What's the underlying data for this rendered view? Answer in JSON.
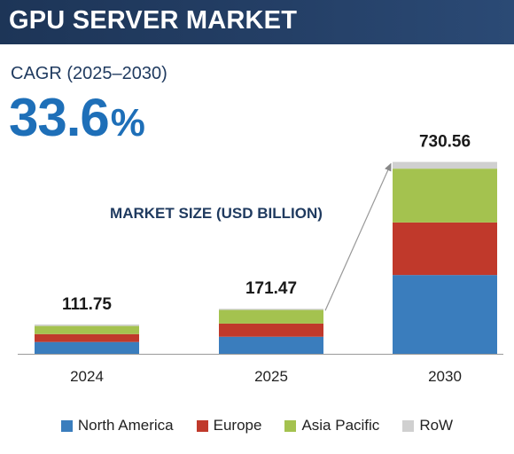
{
  "header": {
    "title": "GPU SERVER MARKET"
  },
  "cagr": {
    "label": "CAGR (2025–2030)",
    "value": "33.6",
    "unit": "%"
  },
  "colors": {
    "north_america": "#3a7dbd",
    "europe": "#c0392b",
    "asia_pacific": "#a4c24f",
    "row": "#d0d0d0",
    "header_bg": "#1d3557"
  },
  "chart_data": {
    "type": "bar",
    "stacked": true,
    "title": "MARKET SIZE (USD BILLION)",
    "categories": [
      "2024",
      "2025",
      "2030"
    ],
    "totals": [
      111.75,
      171.47,
      730.56
    ],
    "total_labels": [
      "111.75",
      "171.47",
      "730.56"
    ],
    "series": [
      {
        "name": "North America",
        "color": "#3a7dbd",
        "values": [
          45,
          65,
          300
        ]
      },
      {
        "name": "Europe",
        "color": "#c0392b",
        "values": [
          30,
          50,
          200
        ]
      },
      {
        "name": "Asia Pacific",
        "color": "#a4c24f",
        "values": [
          31,
          52,
          205
        ]
      },
      {
        "name": "RoW",
        "color": "#d0d0d0",
        "values": [
          5.75,
          4.47,
          25.56
        ]
      }
    ],
    "ylim": [
      0,
      790
    ],
    "grid": false,
    "legend_position": "bottom"
  }
}
